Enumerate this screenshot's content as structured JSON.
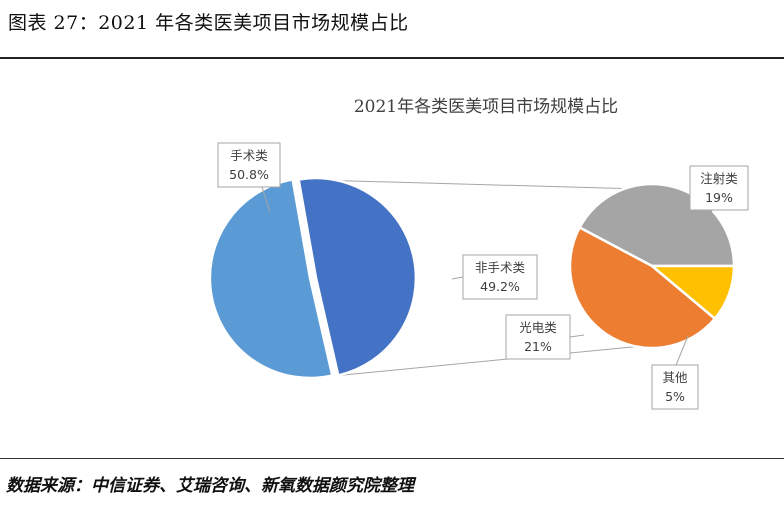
{
  "figure_title": "图表 27：2021 年各类医美项目市场规模占比",
  "source": "数据来源：中信证券、艾瑞咨询、新氧数据颜究院整理",
  "chart_data": {
    "type": "pie",
    "title": "2021年各类医美项目市场规模占比",
    "main_pie": {
      "slices": [
        {
          "label": "手术类",
          "value": 50.8,
          "display": "50.8%",
          "color": "#5B9BD5"
        },
        {
          "label": "非手术类",
          "value": 49.2,
          "display": "49.2%",
          "color": "#4472C4"
        }
      ]
    },
    "sub_pie": {
      "parent": "非手术类",
      "slices": [
        {
          "label": "注射类",
          "value": 19,
          "display": "19%",
          "color": "#A5A5A5"
        },
        {
          "label": "其他",
          "value": 5,
          "display": "5%",
          "color": "#FFC000"
        },
        {
          "label": "光电类",
          "value": 21,
          "display": "21%",
          "color": "#ED7D31"
        }
      ]
    }
  }
}
